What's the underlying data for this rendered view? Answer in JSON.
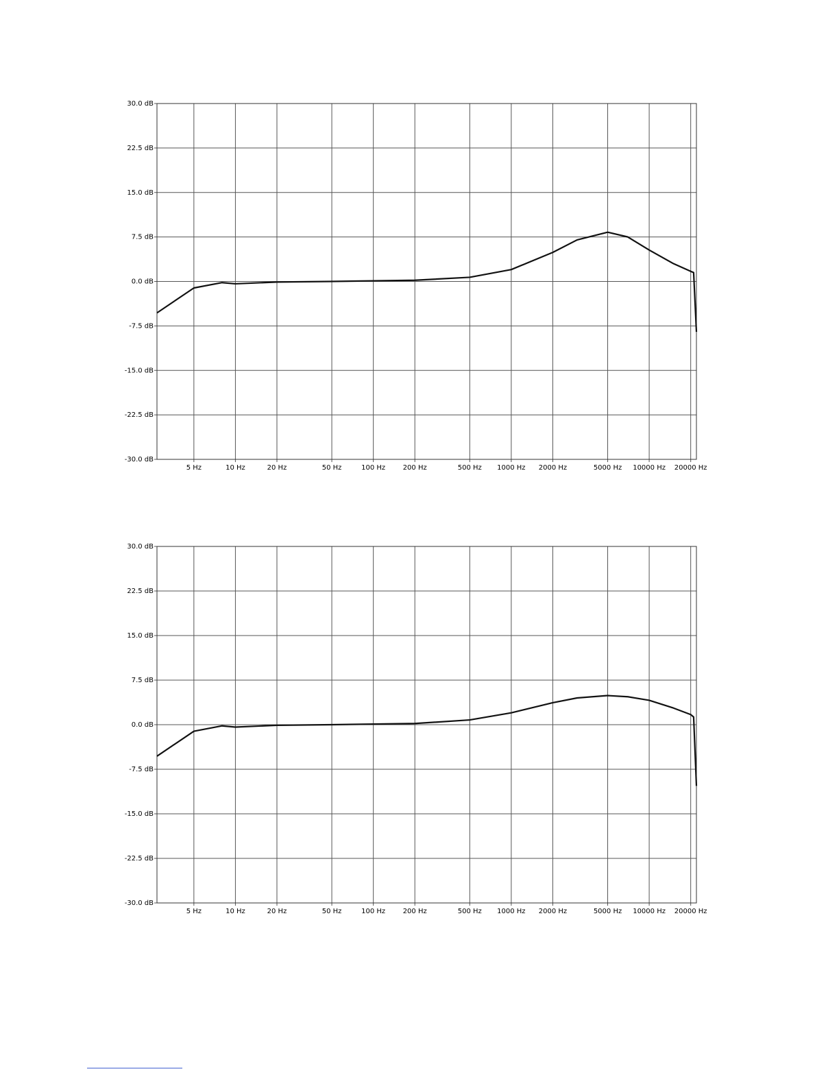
{
  "chart_data": [
    {
      "type": "line",
      "xscale": "log",
      "grid": true,
      "xlim": [
        2.7,
        22000
      ],
      "ylim": [
        -30,
        30
      ],
      "xticks": [
        {
          "value": 5,
          "label": "5 Hz"
        },
        {
          "value": 10,
          "label": "10 Hz"
        },
        {
          "value": 20,
          "label": "20 Hz"
        },
        {
          "value": 50,
          "label": "50 Hz"
        },
        {
          "value": 100,
          "label": "100 Hz"
        },
        {
          "value": 200,
          "label": "200 Hz"
        },
        {
          "value": 500,
          "label": "500 Hz"
        },
        {
          "value": 1000,
          "label": "1000 Hz"
        },
        {
          "value": 2000,
          "label": "2000 Hz"
        },
        {
          "value": 5000,
          "label": "5000 Hz"
        },
        {
          "value": 10000,
          "label": "10000 Hz"
        },
        {
          "value": 20000,
          "label": "20000 Hz"
        }
      ],
      "yticks": [
        {
          "value": 30,
          "label": "30.0 dB"
        },
        {
          "value": 22.5,
          "label": "22.5 dB"
        },
        {
          "value": 15,
          "label": "15.0 dB"
        },
        {
          "value": 7.5,
          "label": "7.5 dB"
        },
        {
          "value": 0,
          "label": "0.0 dB"
        },
        {
          "value": -7.5,
          "label": "-7.5 dB"
        },
        {
          "value": -15,
          "label": "-15.0 dB"
        },
        {
          "value": -22.5,
          "label": "-22.5 dB"
        },
        {
          "value": -30,
          "label": "-30.0 dB"
        }
      ],
      "series": [
        {
          "color": "#111111",
          "x": [
            2.7,
            5,
            8,
            10,
            20,
            50,
            100,
            200,
            500,
            1000,
            2000,
            3000,
            5000,
            7000,
            10000,
            15000,
            20000,
            21000,
            22000
          ],
          "values": [
            -5.3,
            -1.1,
            -0.2,
            -0.4,
            -0.1,
            0,
            0.1,
            0.2,
            0.7,
            2.0,
            4.9,
            7.0,
            8.3,
            7.5,
            5.3,
            3.0,
            1.7,
            1.5,
            -8.5
          ]
        }
      ]
    },
    {
      "type": "line",
      "xscale": "log",
      "grid": true,
      "xlim": [
        2.7,
        22000
      ],
      "ylim": [
        -30,
        30
      ],
      "xticks": [
        {
          "value": 5,
          "label": "5 Hz"
        },
        {
          "value": 10,
          "label": "10 Hz"
        },
        {
          "value": 20,
          "label": "20 Hz"
        },
        {
          "value": 50,
          "label": "50 Hz"
        },
        {
          "value": 100,
          "label": "100 Hz"
        },
        {
          "value": 200,
          "label": "200 Hz"
        },
        {
          "value": 500,
          "label": "500 Hz"
        },
        {
          "value": 1000,
          "label": "1000 Hz"
        },
        {
          "value": 2000,
          "label": "2000 Hz"
        },
        {
          "value": 5000,
          "label": "5000 Hz"
        },
        {
          "value": 10000,
          "label": "10000 Hz"
        },
        {
          "value": 20000,
          "label": "20000 Hz"
        }
      ],
      "yticks": [
        {
          "value": 30,
          "label": "30.0 dB"
        },
        {
          "value": 22.5,
          "label": "22.5 dB"
        },
        {
          "value": 15,
          "label": "15.0 dB"
        },
        {
          "value": 7.5,
          "label": "7.5 dB"
        },
        {
          "value": 0,
          "label": "0.0 dB"
        },
        {
          "value": -7.5,
          "label": "-7.5 dB"
        },
        {
          "value": -15,
          "label": "-15.0 dB"
        },
        {
          "value": -22.5,
          "label": "-22.5 dB"
        },
        {
          "value": -30,
          "label": "-30.0 dB"
        }
      ],
      "series": [
        {
          "color": "#111111",
          "x": [
            2.7,
            5,
            8,
            10,
            20,
            50,
            100,
            200,
            500,
            1000,
            2000,
            3000,
            5000,
            7000,
            10000,
            15000,
            20000,
            21000,
            22000
          ],
          "values": [
            -5.3,
            -1.1,
            -0.2,
            -0.4,
            -0.1,
            0,
            0.1,
            0.2,
            0.8,
            2.0,
            3.7,
            4.5,
            4.9,
            4.7,
            4.1,
            2.8,
            1.7,
            1.3,
            -10.3
          ]
        }
      ]
    }
  ]
}
